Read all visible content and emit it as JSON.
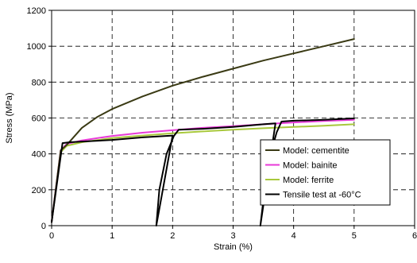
{
  "chart_data": {
    "type": "line",
    "xlabel": "Strain (%)",
    "ylabel": "Stress (MPa)",
    "xlim": [
      0,
      6
    ],
    "ylim": [
      0,
      1200
    ],
    "xticks": [
      0,
      1,
      2,
      3,
      4,
      5,
      6
    ],
    "yticks": [
      0,
      200,
      400,
      600,
      800,
      1000,
      1200
    ],
    "grid": true,
    "legend_position": "right",
    "series": [
      {
        "name": "Model: cementite",
        "color": "#3a3a14",
        "points": [
          [
            0,
            20
          ],
          [
            0.15,
            420
          ],
          [
            0.25,
            450
          ],
          [
            0.5,
            545
          ],
          [
            0.75,
            605
          ],
          [
            1,
            650
          ],
          [
            1.5,
            720
          ],
          [
            2,
            780
          ],
          [
            2.5,
            830
          ],
          [
            3,
            875
          ],
          [
            3.5,
            920
          ],
          [
            4,
            960
          ],
          [
            4.5,
            1000
          ],
          [
            5,
            1040
          ]
        ]
      },
      {
        "name": "Model: bainite",
        "color": "#e83ad8",
        "points": [
          [
            0,
            20
          ],
          [
            0.15,
            420
          ],
          [
            0.25,
            455
          ],
          [
            0.5,
            475
          ],
          [
            1,
            500
          ],
          [
            1.5,
            518
          ],
          [
            2,
            532
          ],
          [
            2.5,
            545
          ],
          [
            3,
            555
          ],
          [
            3.5,
            565
          ],
          [
            4,
            575
          ],
          [
            4.5,
            583
          ],
          [
            5,
            590
          ]
        ]
      },
      {
        "name": "Model: ferrite",
        "color": "#a8c83c",
        "points": [
          [
            0,
            20
          ],
          [
            0.15,
            410
          ],
          [
            0.25,
            445
          ],
          [
            0.5,
            465
          ],
          [
            1,
            488
          ],
          [
            1.5,
            502
          ],
          [
            2,
            515
          ],
          [
            2.5,
            525
          ],
          [
            3,
            535
          ],
          [
            3.5,
            543
          ],
          [
            4,
            550
          ],
          [
            4.5,
            557
          ],
          [
            5,
            565
          ]
        ]
      },
      {
        "name": "Tensile test at -60°C",
        "color": "#000000",
        "points": [
          [
            0,
            20
          ],
          [
            0.18,
            460
          ],
          [
            0.3,
            465
          ],
          [
            1,
            478
          ],
          [
            1.5,
            492
          ],
          [
            2,
            502
          ],
          [
            1.73,
            0
          ],
          [
            1.78,
            200
          ],
          [
            1.9,
            400
          ],
          [
            2.02,
            500
          ],
          [
            2.1,
            535
          ],
          [
            2.5,
            540
          ],
          [
            3,
            550
          ],
          [
            3.5,
            565
          ],
          [
            3.7,
            570
          ],
          [
            3.45,
            0
          ],
          [
            3.52,
            200
          ],
          [
            3.62,
            400
          ],
          [
            3.72,
            520
          ],
          [
            3.8,
            580
          ],
          [
            4,
            585
          ],
          [
            4.5,
            590
          ],
          [
            5,
            598
          ]
        ]
      }
    ]
  }
}
